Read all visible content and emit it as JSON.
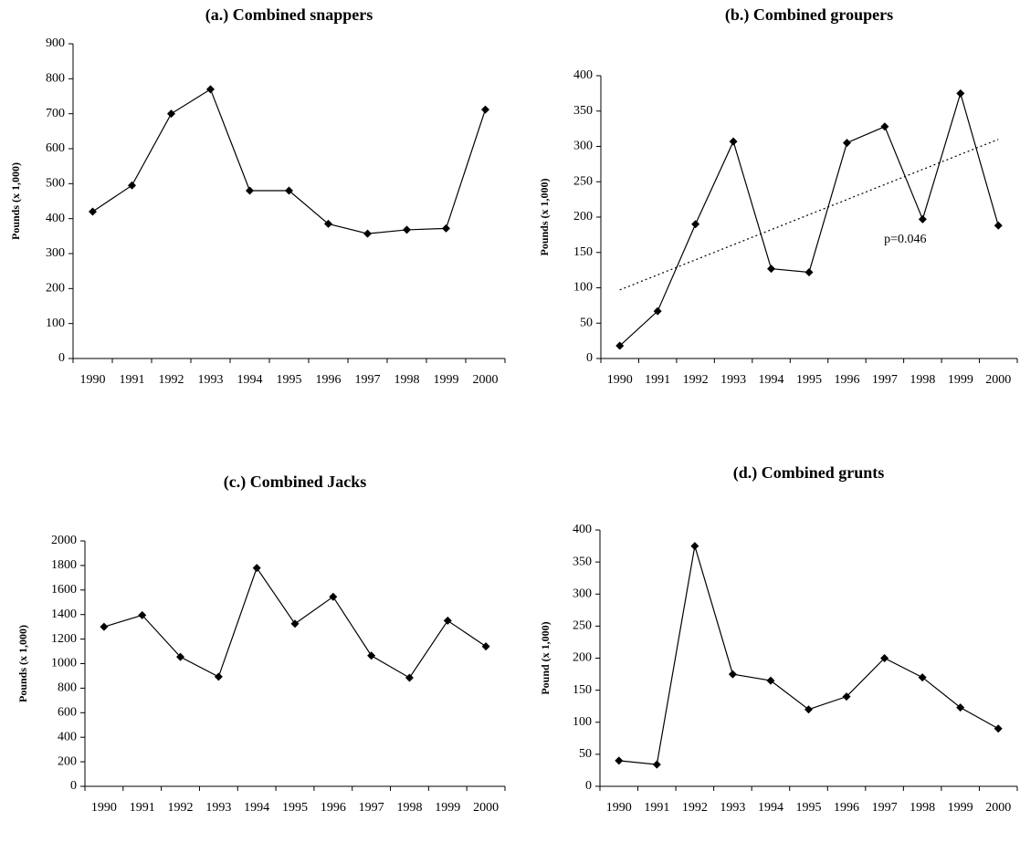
{
  "chart_data": [
    {
      "type": "line",
      "title": "(a.) Combined snappers",
      "ylabel": "Pounds (x 1,000)",
      "categories": [
        "1990",
        "1991",
        "1992",
        "1993",
        "1994",
        "1995",
        "1996",
        "1997",
        "1998",
        "1999",
        "2000"
      ],
      "values": [
        420,
        495,
        700,
        770,
        480,
        480,
        385,
        357,
        368,
        372,
        712
      ],
      "color": "#000000",
      "ylim": [
        0,
        900
      ],
      "yticks": [
        0,
        100,
        200,
        300,
        400,
        500,
        600,
        700,
        800,
        900
      ]
    },
    {
      "type": "line",
      "title": "(b.) Combined groupers",
      "ylabel": "Pounds (x 1,000)",
      "categories": [
        "1990",
        "1991",
        "1992",
        "1993",
        "1994",
        "1995",
        "1996",
        "1997",
        "1998",
        "1999",
        "2000"
      ],
      "values": [
        18,
        67,
        190,
        307,
        127,
        122,
        305,
        328,
        197,
        375,
        188
      ],
      "color": "#000000",
      "ylim": [
        0,
        400
      ],
      "yticks": [
        0,
        50,
        100,
        150,
        200,
        250,
        300,
        350,
        400
      ],
      "trendline": {
        "start": 97,
        "end": 310
      },
      "annotation": "p=0.046"
    },
    {
      "type": "line",
      "title": "(c.) Combined Jacks",
      "ylabel": "Pounds (x 1,000)",
      "categories": [
        "1990",
        "1991",
        "1992",
        "1993",
        "1994",
        "1995",
        "1996",
        "1997",
        "1998",
        "1999",
        "2000"
      ],
      "values": [
        1300,
        1395,
        1055,
        893,
        1780,
        1325,
        1545,
        1065,
        885,
        1350,
        1140
      ],
      "color": "#000000",
      "ylim": [
        0,
        2000
      ],
      "yticks": [
        0,
        200,
        400,
        600,
        800,
        1000,
        1200,
        1400,
        1600,
        1800,
        2000
      ]
    },
    {
      "type": "line",
      "title": "(d.) Combined grunts",
      "ylabel": "Pound (x 1,000)",
      "categories": [
        "1990",
        "1991",
        "1992",
        "1993",
        "1994",
        "1995",
        "1996",
        "1997",
        "1998",
        "1999",
        "2000"
      ],
      "values": [
        40,
        34,
        375,
        175,
        165,
        120,
        140,
        200,
        170,
        123,
        90
      ],
      "color": "#000000",
      "ylim": [
        0,
        400
      ],
      "yticks": [
        0,
        50,
        100,
        150,
        200,
        250,
        300,
        350,
        400
      ]
    }
  ]
}
